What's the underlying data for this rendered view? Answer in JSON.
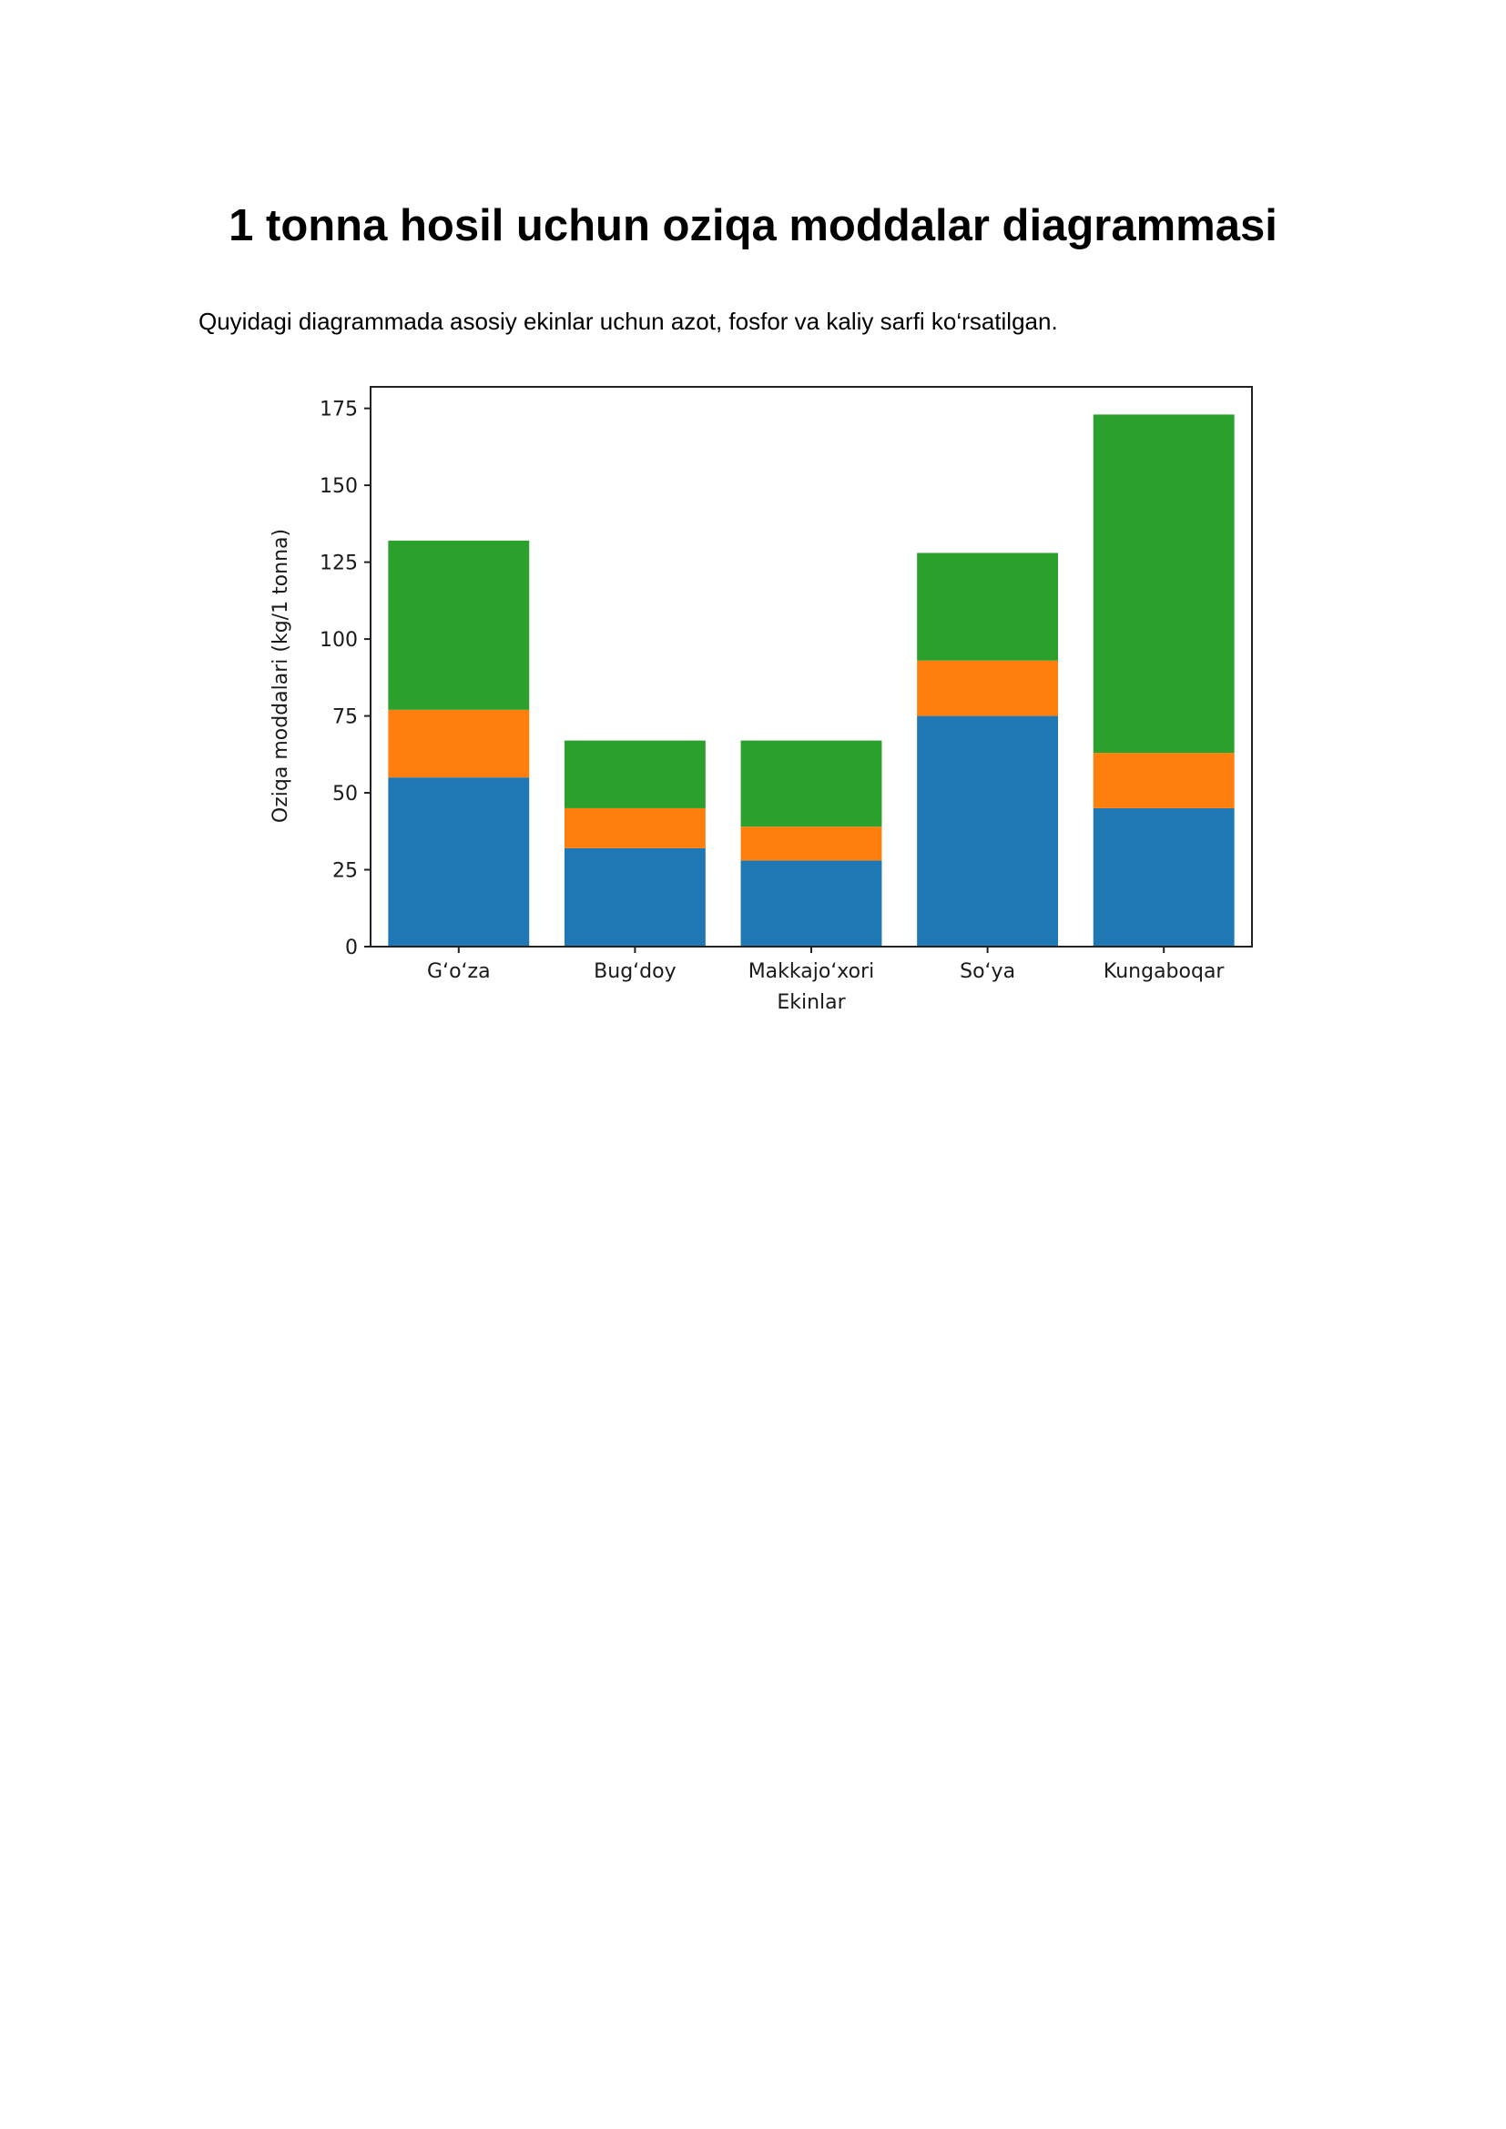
{
  "document": {
    "title": "1 tonna hosil uchun oziqa moddalar diagrammasi",
    "intro": "Quyidagi diagrammada asosiy ekinlar uchun azot, fosfor va kaliy sarfi ko‘rsatilgan."
  },
  "chart_data": {
    "type": "bar",
    "stacked": true,
    "categories": [
      "G‘o‘za",
      "Bug‘doy",
      "Makkajo‘xori",
      "So‘ya",
      "Kungaboqar"
    ],
    "series": [
      {
        "values": [
          55,
          32,
          28,
          75,
          45
        ],
        "color": "#1f77b4"
      },
      {
        "values": [
          22,
          13,
          11,
          18,
          18
        ],
        "color": "#ff7f0e"
      },
      {
        "values": [
          55,
          22,
          28,
          35,
          110
        ],
        "color": "#2ca02c"
      }
    ],
    "title": "",
    "xlabel": "Ekinlar",
    "ylabel": "Oziqa moddalari (kg/1 tonna)",
    "ylim": [
      0,
      182
    ],
    "yticks": [
      0,
      25,
      50,
      75,
      100,
      125,
      150,
      175
    ],
    "grid": false,
    "legend": "none"
  }
}
